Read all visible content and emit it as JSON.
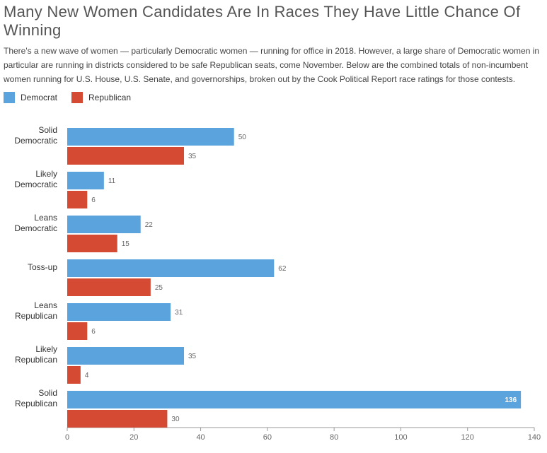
{
  "chart_data": {
    "type": "bar",
    "orientation": "horizontal",
    "title": "Many New Women Candidates Are In Races They Have Little Chance Of Winning",
    "subtitle": "There's a new wave of women — particularly Democratic women — running for office in 2018. However, a large share of Democratic women in particular are running in districts considered to be safe Republican seats, come November. Below are the combined totals of non-incumbent women running for U.S. House, U.S. Senate, and governorships, broken out by the Cook Political Report race ratings for those contests.",
    "categories": [
      "Solid Democratic",
      "Likely Democratic",
      "Leans Democratic",
      "Toss-up",
      "Leans Republican",
      "Likely Republican",
      "Solid Republican"
    ],
    "series": [
      {
        "name": "Democrat",
        "color": "#5ba3dc",
        "values": [
          50,
          11,
          22,
          62,
          31,
          35,
          136
        ]
      },
      {
        "name": "Republican",
        "color": "#d44a33",
        "values": [
          35,
          6,
          15,
          25,
          6,
          4,
          30
        ]
      }
    ],
    "xlim": [
      0,
      140
    ],
    "xticks": [
      0,
      20,
      40,
      60,
      80,
      100,
      120,
      140
    ],
    "grid": false,
    "legend": "top-left"
  }
}
